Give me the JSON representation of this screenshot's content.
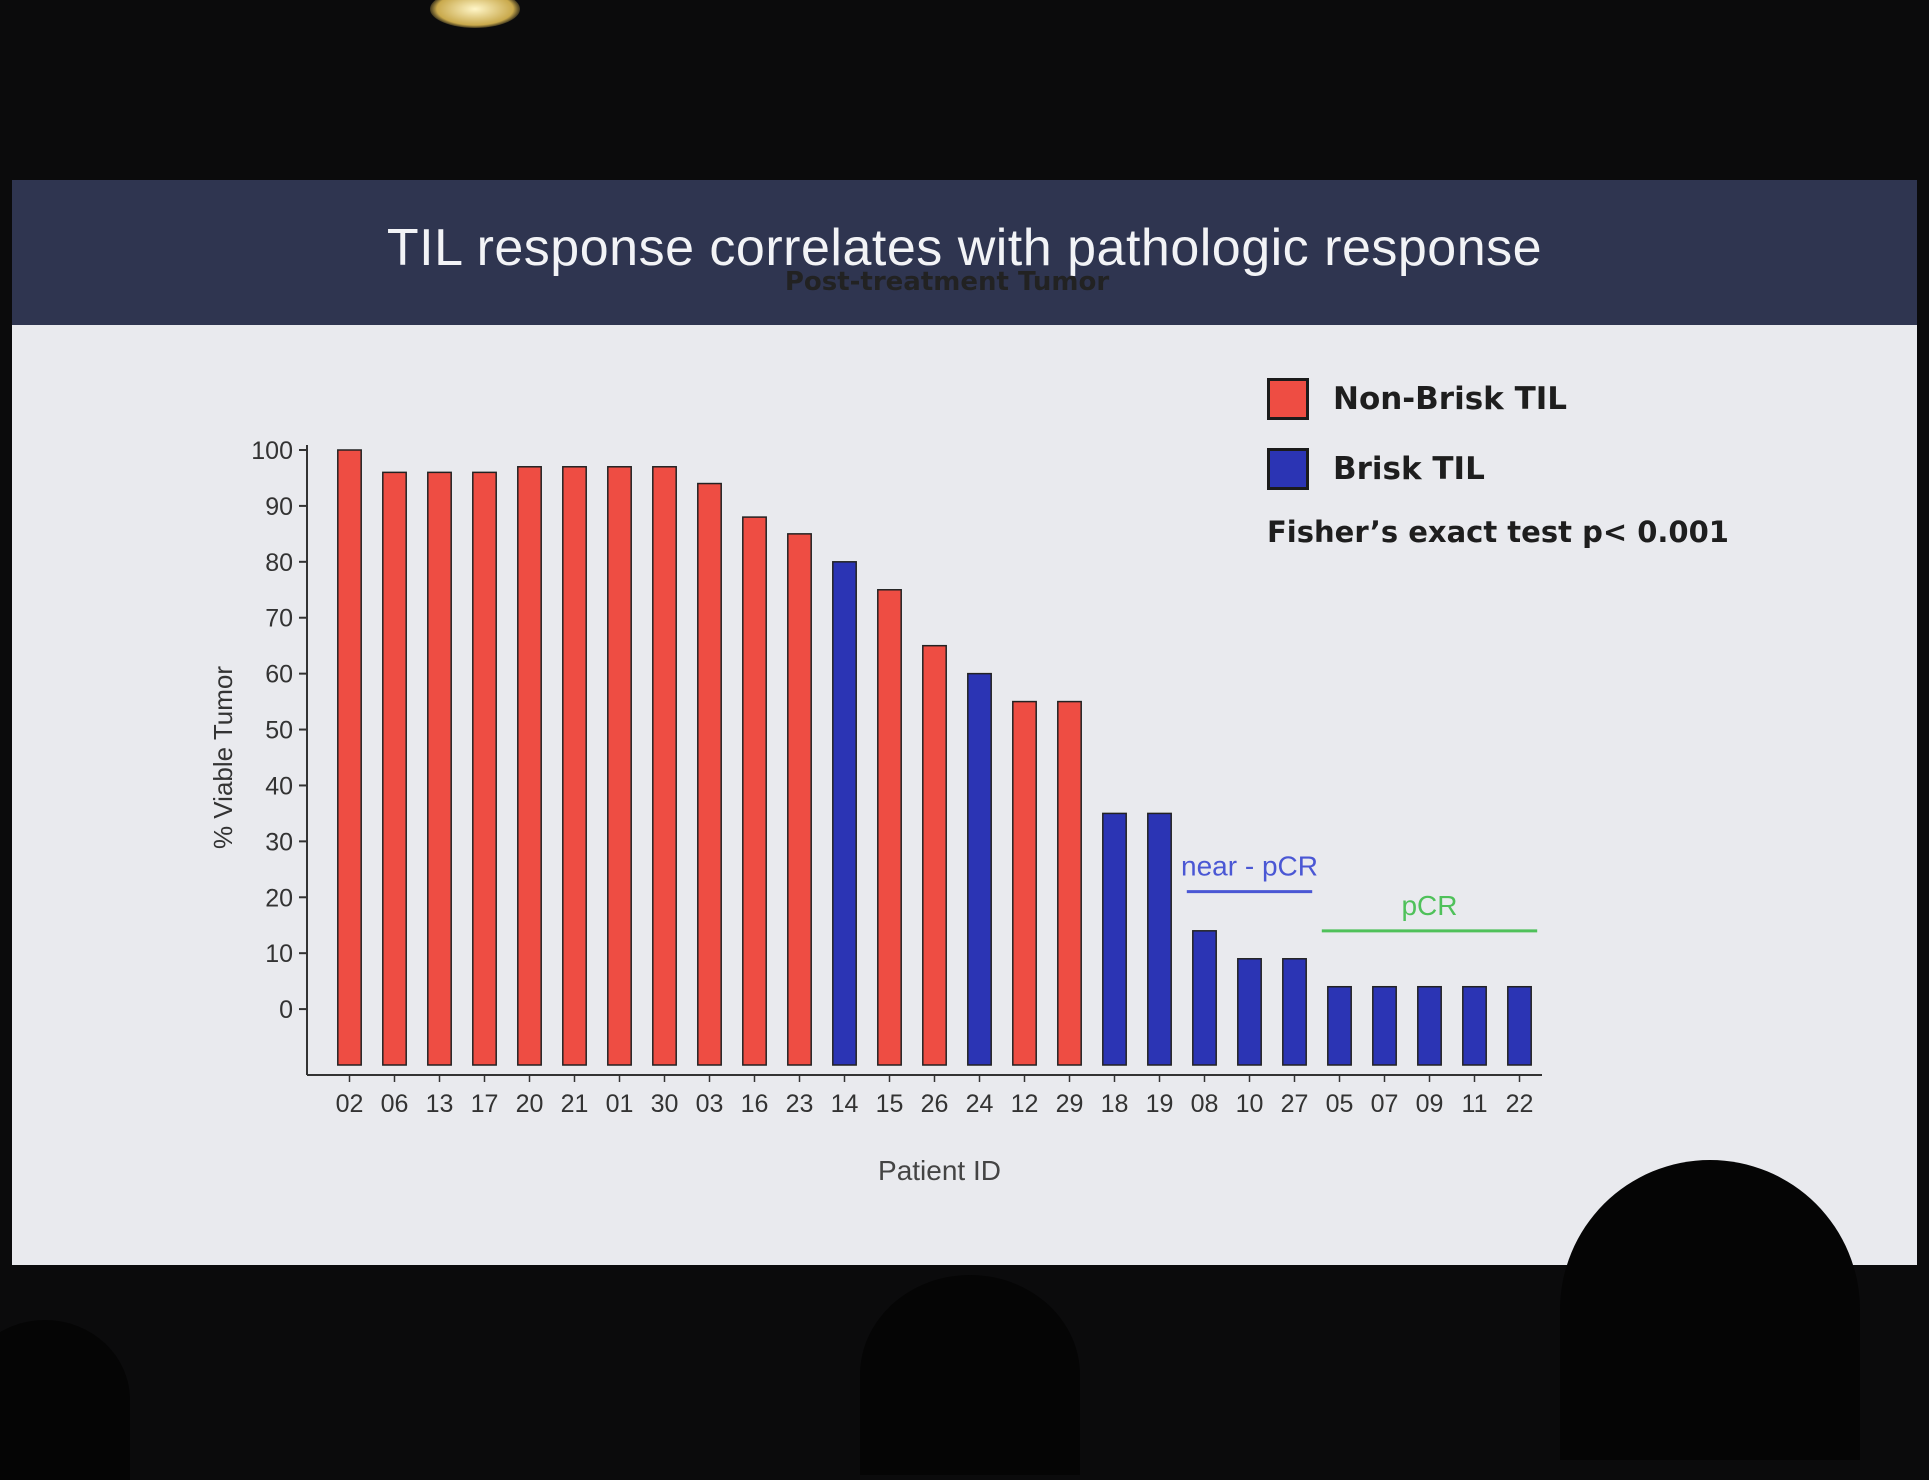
{
  "slide": {
    "title": "TIL response correlates with pathologic response"
  },
  "legend": {
    "items": [
      {
        "label": "Non-Brisk TIL",
        "color": "#ee4d43"
      },
      {
        "label": "Brisk TIL",
        "color": "#2b34b4"
      }
    ],
    "note": "Fisher’s exact test p< 0.001"
  },
  "annotations": {
    "near_pcr": {
      "label": "near - pCR",
      "color": "#4a57d4",
      "from": "08",
      "to": "27"
    },
    "pcr": {
      "label": "pCR",
      "color": "#4fc15a",
      "from": "05",
      "to": "22"
    }
  },
  "chart_data": {
    "type": "bar",
    "title": "Post-treatment Tumor",
    "xlabel": "Patient ID",
    "ylabel": "% Viable Tumor",
    "ylim": [
      -10,
      100
    ],
    "yticks": [
      0,
      10,
      20,
      30,
      40,
      50,
      60,
      70,
      80,
      90,
      100
    ],
    "grid": false,
    "legend_position": "top-right",
    "categories": [
      "02",
      "06",
      "13",
      "17",
      "20",
      "21",
      "01",
      "30",
      "03",
      "16",
      "23",
      "14",
      "15",
      "26",
      "24",
      "12",
      "29",
      "18",
      "19",
      "08",
      "10",
      "27",
      "05",
      "07",
      "09",
      "11",
      "22"
    ],
    "values": [
      100,
      96,
      96,
      96,
      97,
      97,
      97,
      97,
      94,
      88,
      85,
      80,
      75,
      65,
      60,
      55,
      55,
      35,
      35,
      14,
      9,
      9,
      4,
      4,
      4,
      4,
      4
    ],
    "groups": [
      "Non-Brisk TIL",
      "Non-Brisk TIL",
      "Non-Brisk TIL",
      "Non-Brisk TIL",
      "Non-Brisk TIL",
      "Non-Brisk TIL",
      "Non-Brisk TIL",
      "Non-Brisk TIL",
      "Non-Brisk TIL",
      "Non-Brisk TIL",
      "Non-Brisk TIL",
      "Brisk TIL",
      "Non-Brisk TIL",
      "Non-Brisk TIL",
      "Brisk TIL",
      "Non-Brisk TIL",
      "Non-Brisk TIL",
      "Brisk TIL",
      "Brisk TIL",
      "Brisk TIL",
      "Brisk TIL",
      "Brisk TIL",
      "Brisk TIL",
      "Brisk TIL",
      "Brisk TIL",
      "Brisk TIL",
      "Brisk TIL"
    ]
  }
}
